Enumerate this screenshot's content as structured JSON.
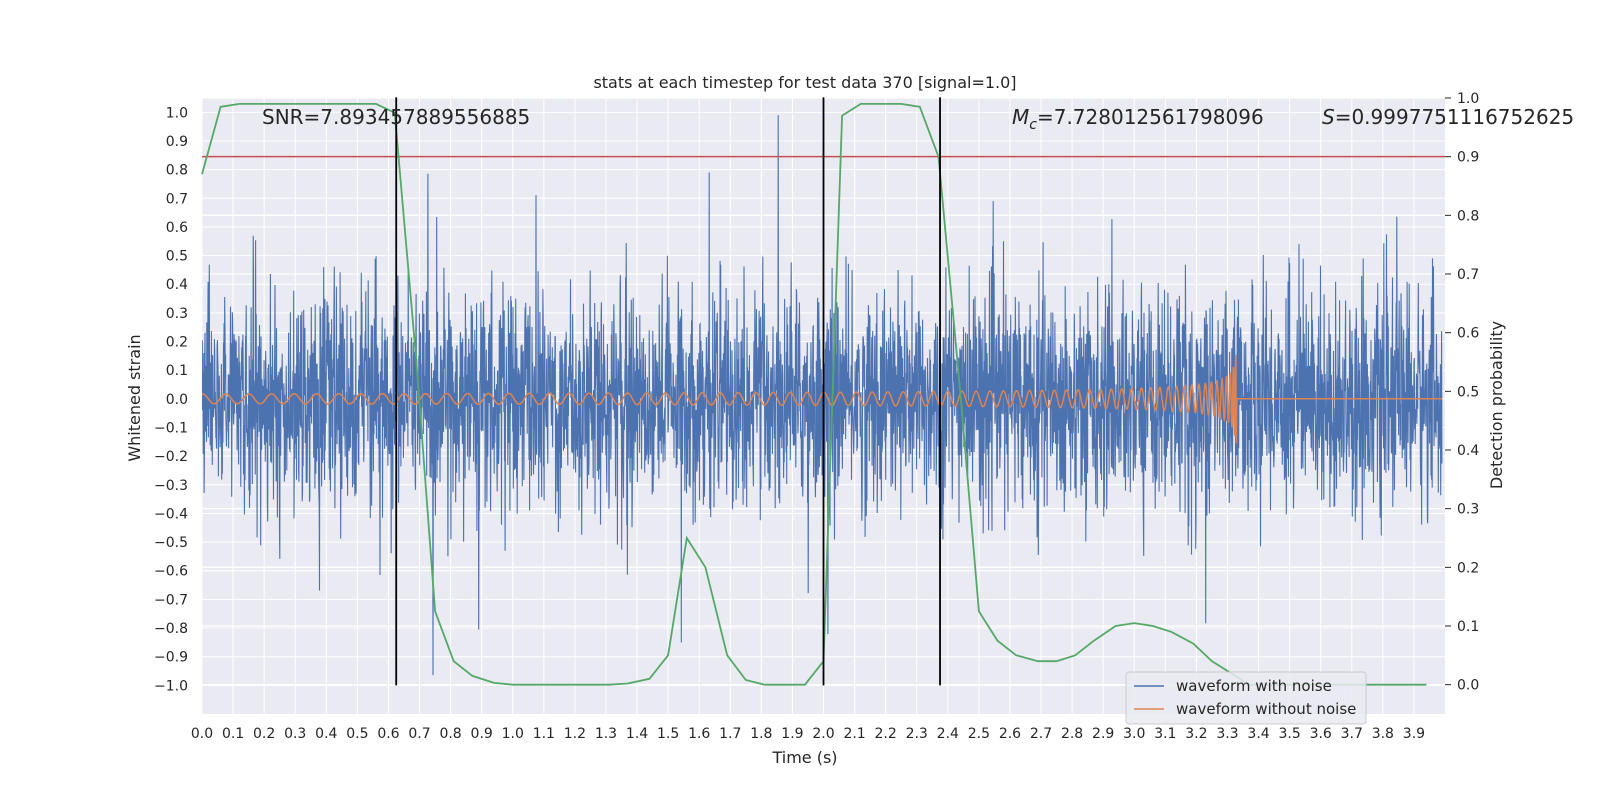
{
  "chart_data": {
    "type": "line",
    "title": "stats at each timestep for test data 370 [signal=1.0]",
    "xlabel": "Time (s)",
    "ylabel": "Whitened strain",
    "y2label": "Detection probability",
    "xlim": [
      0.0,
      4.0
    ],
    "ylim": [
      -1.1,
      1.05
    ],
    "y2lim": [
      -0.05,
      1.0
    ],
    "x_ticks": [
      "0.0",
      "0.1",
      "0.2",
      "0.3",
      "0.4",
      "0.5",
      "0.6",
      "0.7",
      "0.8",
      "0.9",
      "1.0",
      "1.1",
      "1.2",
      "1.3",
      "1.4",
      "1.5",
      "1.6",
      "1.7",
      "1.8",
      "1.9",
      "2.0",
      "2.1",
      "2.2",
      "2.3",
      "2.4",
      "2.5",
      "2.6",
      "2.7",
      "2.8",
      "2.9",
      "3.0",
      "3.1",
      "3.2",
      "3.3",
      "3.4",
      "3.5",
      "3.6",
      "3.7",
      "3.8",
      "3.9"
    ],
    "y_ticks": [
      "1.0",
      "0.9",
      "0.8",
      "0.7",
      "0.6",
      "0.5",
      "0.4",
      "0.3",
      "0.2",
      "0.1",
      "0.0",
      "−0.1",
      "−0.2",
      "−0.3",
      "−0.4",
      "−0.5",
      "−0.6",
      "−0.7",
      "−0.8",
      "−0.9",
      "−1.0"
    ],
    "y2_ticks": [
      "1.0",
      "0.9",
      "0.8",
      "0.7",
      "0.6",
      "0.5",
      "0.4",
      "0.3",
      "0.2",
      "0.1",
      "0.0"
    ],
    "grid": true,
    "legend_position": "bottom-right",
    "series": [
      {
        "name": "waveform with noise",
        "color": "#4c72b0",
        "axis": "left",
        "kind": "noisy strain"
      },
      {
        "name": "waveform without noise",
        "color": "#dd8452",
        "axis": "left",
        "kind": "chirp",
        "merger_time": 3.33
      },
      {
        "name": "detection probability",
        "color": "#55a868",
        "axis": "right",
        "x": [
          0.0,
          0.06,
          0.12,
          0.19,
          0.25,
          0.31,
          0.37,
          0.44,
          0.5,
          0.56,
          0.62,
          0.69,
          0.75,
          0.81,
          0.87,
          0.94,
          1.0,
          1.06,
          1.12,
          1.19,
          1.25,
          1.31,
          1.37,
          1.44,
          1.5,
          1.56,
          1.62,
          1.69,
          1.75,
          1.81,
          1.87,
          1.94,
          2.0,
          2.06,
          2.12,
          2.19,
          2.25,
          2.31,
          2.37,
          2.44,
          2.5,
          2.56,
          2.62,
          2.69,
          2.75,
          2.81,
          2.87,
          2.94,
          3.0,
          3.06,
          3.12,
          3.19,
          3.25,
          3.31,
          3.37,
          3.44,
          3.5,
          3.56,
          3.62,
          3.69,
          3.75,
          3.81,
          3.87,
          3.94
        ],
        "values": [
          0.87,
          0.985,
          0.99,
          0.99,
          0.99,
          0.99,
          0.99,
          0.99,
          0.99,
          0.99,
          0.975,
          0.55,
          0.125,
          0.04,
          0.015,
          0.003,
          0.0,
          0.0,
          0.0,
          0.0,
          0.0,
          0.0,
          0.002,
          0.01,
          0.05,
          0.25,
          0.2,
          0.05,
          0.008,
          0.0,
          0.0,
          0.0,
          0.04,
          0.97,
          0.99,
          0.99,
          0.99,
          0.985,
          0.9,
          0.5,
          0.125,
          0.075,
          0.05,
          0.04,
          0.04,
          0.05,
          0.075,
          0.1,
          0.105,
          0.1,
          0.09,
          0.07,
          0.04,
          0.02,
          0.0,
          0.0,
          0.0,
          0.0,
          0.0,
          0.0,
          0.0,
          0.0,
          0.0,
          0.0
        ]
      }
    ],
    "threshold": {
      "value": 0.9,
      "axis": "right",
      "color": "#c44e52"
    },
    "vertical_markers": [
      0.625,
      2.0,
      2.375
    ],
    "marker_color": "#000000",
    "annotations": {
      "snr": "SNR=7.893457889556885",
      "mc_symbol": "M",
      "mc_sub": "c",
      "mc_value": "=7.728012561798096",
      "s_symbol": "S",
      "s_value": "=0.9997751116752625"
    }
  }
}
